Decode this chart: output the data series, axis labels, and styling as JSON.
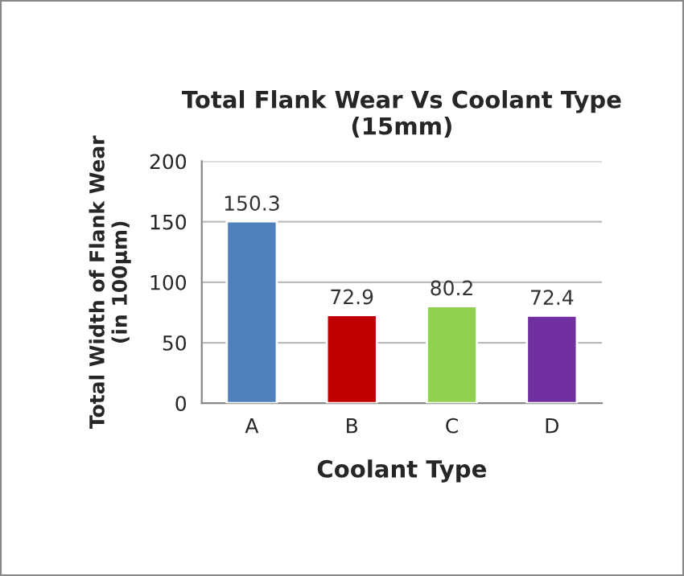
{
  "chart_data": {
    "type": "bar",
    "title": "Total Flank Wear Vs Coolant Type\n(15mm)",
    "xlabel": "Coolant Type",
    "ylabel": "Total Width of Flank Wear\n(in 100μm)",
    "categories": [
      "A",
      "B",
      "C",
      "D"
    ],
    "values": [
      150.3,
      72.9,
      80.2,
      72.4
    ],
    "colors": [
      "#4f81bd",
      "#c00000",
      "#92d050",
      "#7030a0"
    ],
    "ylim": [
      0,
      200
    ],
    "yticks": [
      0,
      50,
      100,
      150,
      200
    ],
    "grid": "y",
    "data_labels": true
  }
}
